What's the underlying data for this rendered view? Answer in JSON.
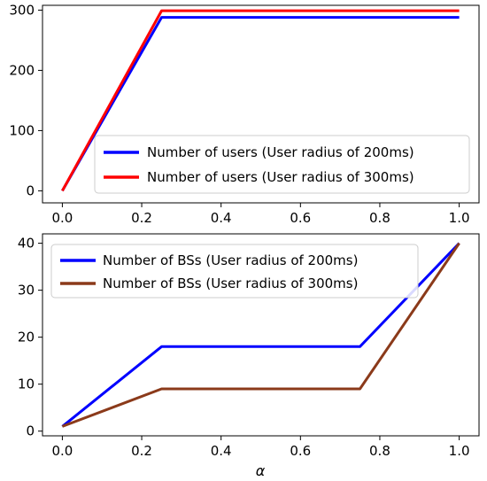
{
  "chart_data": [
    {
      "type": "line",
      "x": [
        0.0,
        0.25,
        1.0
      ],
      "xlim": [
        -0.05,
        1.05
      ],
      "ylim": [
        -20,
        308
      ],
      "xticks": [
        "0.0",
        "0.2",
        "0.4",
        "0.6",
        "0.8",
        "1.0"
      ],
      "yticks": [
        "0",
        "100",
        "200",
        "300"
      ],
      "xlabel": "",
      "legend": "bottom-right",
      "series": [
        {
          "name": "Number of users (User radius of 200ms)",
          "color": "#0000ff",
          "values": [
            0,
            288,
            288
          ]
        },
        {
          "name": "Number of users (User radius of 300ms)",
          "color": "#ff0000",
          "values": [
            0,
            299,
            299
          ]
        }
      ]
    },
    {
      "type": "line",
      "x": [
        0.0,
        0.25,
        0.75,
        1.0
      ],
      "xlim": [
        -0.05,
        1.05
      ],
      "ylim": [
        -1,
        42
      ],
      "xticks": [
        "0.0",
        "0.2",
        "0.4",
        "0.6",
        "0.8",
        "1.0"
      ],
      "yticks": [
        "0",
        "10",
        "20",
        "30",
        "40"
      ],
      "xlabel": "α",
      "legend": "top-left",
      "series": [
        {
          "name": "Number of BSs (User radius of 200ms)",
          "color": "#0000ff",
          "values": [
            1,
            18,
            18,
            40
          ]
        },
        {
          "name": "Number of BSs (User radius of 300ms)",
          "color": "#8b3a1a",
          "values": [
            1,
            9,
            9,
            40
          ]
        }
      ]
    }
  ]
}
